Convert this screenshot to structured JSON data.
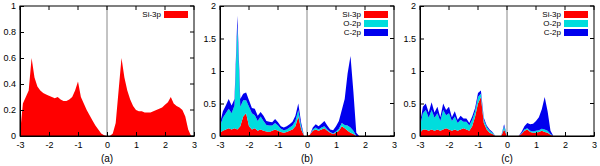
{
  "chart_data": [
    {
      "type": "area",
      "title": "(a)",
      "stacked": true,
      "legend": "upper right",
      "x": [
        -3,
        -2.9,
        -2.8,
        -2.7,
        -2.6,
        -2.5,
        -2.4,
        -2.3,
        -2.2,
        -2.1,
        -2,
        -1.9,
        -1.8,
        -1.7,
        -1.6,
        -1.5,
        -1.4,
        -1.3,
        -1.2,
        -1.1,
        -1,
        -0.9,
        -0.8,
        -0.7,
        -0.6,
        -0.5,
        -0.4,
        -0.3,
        -0.2,
        -0.1,
        0,
        0.1,
        0.2,
        0.3,
        0.4,
        0.5,
        0.6,
        0.7,
        0.8,
        0.9,
        1,
        1.1,
        1.2,
        1.3,
        1.4,
        1.5,
        1.6,
        1.7,
        1.8,
        1.9,
        2,
        2.1,
        2.2,
        2.3,
        2.4,
        2.5,
        2.6,
        2.7,
        2.8,
        2.9,
        3
      ],
      "series": [
        {
          "name": "Si-3p",
          "color": "#ff0000",
          "values": [
            0.02,
            0.25,
            0.3,
            0.35,
            0.6,
            0.45,
            0.38,
            0.35,
            0.33,
            0.32,
            0.31,
            0.3,
            0.29,
            0.3,
            0.28,
            0.27,
            0.27,
            0.28,
            0.3,
            0.35,
            0.42,
            0.3,
            0.25,
            0.2,
            0.16,
            0.12,
            0.08,
            0.05,
            0.02,
            0.005,
            0,
            0,
            0.02,
            0.1,
            0.35,
            0.6,
            0.45,
            0.35,
            0.28,
            0.23,
            0.2,
            0.19,
            0.19,
            0.18,
            0.18,
            0.18,
            0.19,
            0.2,
            0.21,
            0.22,
            0.24,
            0.26,
            0.3,
            0.25,
            0.23,
            0.22,
            0.2,
            0.15,
            0.05,
            0,
            0
          ]
        }
      ],
      "xlim": [
        -3,
        3
      ],
      "xticks": [
        -3,
        -2,
        -1,
        0,
        1,
        2,
        3
      ],
      "ylim": [
        0,
        1
      ],
      "yticks": [
        0,
        0.2,
        0.4,
        0.6,
        0.8,
        1
      ],
      "vlines": [
        0
      ]
    },
    {
      "type": "area",
      "title": "(b)",
      "stacked": true,
      "legend": "upper right",
      "x": [
        -3,
        -2.9,
        -2.8,
        -2.7,
        -2.6,
        -2.5,
        -2.4,
        -2.3,
        -2.2,
        -2.1,
        -2,
        -1.9,
        -1.8,
        -1.7,
        -1.6,
        -1.5,
        -1.4,
        -1.3,
        -1.2,
        -1.1,
        -1,
        -0.9,
        -0.8,
        -0.7,
        -0.6,
        -0.5,
        -0.4,
        -0.3,
        -0.2,
        -0.1,
        0,
        0.1,
        0.2,
        0.3,
        0.4,
        0.5,
        0.6,
        0.7,
        0.8,
        0.9,
        1,
        1.1,
        1.2,
        1.3,
        1.4,
        1.5,
        1.6,
        1.7,
        1.8,
        1.9,
        2,
        2.1,
        2.2,
        2.3,
        2.4,
        2.5,
        2.6,
        2.7,
        2.8,
        2.9,
        3
      ],
      "series": [
        {
          "name": "Si-3p",
          "color": "#ff0000",
          "values": [
            0.05,
            0.08,
            0.1,
            0.12,
            0.1,
            0.12,
            0.1,
            0.15,
            0.3,
            0.35,
            0.15,
            0.1,
            0.12,
            0.08,
            0.1,
            0.08,
            0.07,
            0.06,
            0.08,
            0.1,
            0.08,
            0.06,
            0.05,
            0.06,
            0.08,
            0.1,
            0.15,
            0.3,
            0.1,
            0,
            0,
            0.02,
            0.08,
            0.1,
            0.08,
            0.1,
            0.12,
            0.08,
            0.05,
            0.03,
            0.05,
            0.08,
            0.15,
            0.12,
            0.08,
            0.05,
            0.03,
            0,
            0,
            0,
            0,
            0,
            0,
            0,
            0,
            0,
            0,
            0,
            0,
            0,
            0
          ]
        },
        {
          "name": "O-2p",
          "color": "#00dddd",
          "values": [
            0.1,
            0.2,
            0.25,
            0.3,
            0.25,
            0.35,
            1.6,
            0.3,
            0.25,
            0.2,
            0.3,
            0.25,
            0.2,
            0.15,
            0.2,
            0.15,
            0.1,
            0.1,
            0.08,
            0.1,
            0.08,
            0.05,
            0.04,
            0.04,
            0.05,
            0.06,
            0.08,
            0.1,
            0.05,
            0,
            0,
            0,
            0.02,
            0.03,
            0.02,
            0.03,
            0.03,
            0.02,
            0.01,
            0.01,
            0.02,
            0.03,
            0.05,
            0.05,
            0.08,
            0.08,
            0.05,
            0,
            0,
            0,
            0,
            0,
            0,
            0,
            0,
            0,
            0,
            0,
            0,
            0,
            0
          ]
        },
        {
          "name": "C-2p",
          "color": "#0000ee",
          "values": [
            0.05,
            0.1,
            0.12,
            0.15,
            0.12,
            0.1,
            0.15,
            0.12,
            0.1,
            0.12,
            0.1,
            0.08,
            0.1,
            0.08,
            0.07,
            0.08,
            0.06,
            0.06,
            0.05,
            0.06,
            0.05,
            0.04,
            0.04,
            0.05,
            0.05,
            0.06,
            0.08,
            0.1,
            0.05,
            0,
            0,
            0,
            0.03,
            0.05,
            0.05,
            0.06,
            0.08,
            0.06,
            0.04,
            0.05,
            0.08,
            0.12,
            0.2,
            0.4,
            0.8,
            1.1,
            0.6,
            0.05,
            0,
            0,
            0,
            0,
            0,
            0,
            0,
            0,
            0,
            0,
            0,
            0,
            0
          ]
        }
      ],
      "xlim": [
        -3,
        3
      ],
      "xticks": [
        -3,
        -2,
        -1,
        0,
        1,
        2,
        3
      ],
      "ylim": [
        0,
        2
      ],
      "yticks": [
        0,
        0.5,
        1,
        1.5,
        2
      ],
      "vlines": [
        0
      ]
    },
    {
      "type": "area",
      "title": "(c)",
      "stacked": true,
      "legend": "upper right",
      "x": [
        -3,
        -2.9,
        -2.8,
        -2.7,
        -2.6,
        -2.5,
        -2.4,
        -2.3,
        -2.2,
        -2.1,
        -2,
        -1.9,
        -1.8,
        -1.7,
        -1.6,
        -1.5,
        -1.4,
        -1.3,
        -1.2,
        -1.1,
        -1,
        -0.9,
        -0.8,
        -0.7,
        -0.6,
        -0.5,
        -0.4,
        -0.3,
        -0.2,
        -0.1,
        0,
        0.1,
        0.2,
        0.3,
        0.4,
        0.5,
        0.6,
        0.7,
        0.8,
        0.9,
        1,
        1.1,
        1.2,
        1.3,
        1.4,
        1.5,
        1.6,
        1.7,
        1.8,
        1.9,
        2,
        2.1,
        2.2,
        2.3,
        2.4,
        2.5,
        2.6,
        2.7,
        2.8,
        2.9,
        3
      ],
      "series": [
        {
          "name": "Si-3p",
          "color": "#ff0000",
          "values": [
            0.05,
            0.1,
            0.1,
            0.08,
            0.1,
            0.08,
            0.1,
            0.08,
            0.1,
            0.12,
            0.1,
            0.08,
            0.1,
            0.08,
            0.1,
            0.12,
            0.1,
            0.08,
            0.15,
            0.3,
            0.5,
            0.6,
            0.2,
            0.1,
            0.05,
            0.03,
            0,
            0,
            0,
            0.1,
            0,
            0,
            0,
            0,
            0,
            0.03,
            0.08,
            0.1,
            0.06,
            0.05,
            0.05,
            0.06,
            0.08,
            0.06,
            0.05,
            0.02,
            0,
            0,
            0,
            0,
            0,
            0,
            0,
            0,
            0,
            0,
            0,
            0,
            0,
            0,
            0
          ]
        },
        {
          "name": "O-2p",
          "color": "#00dddd",
          "values": [
            0.1,
            0.25,
            0.3,
            0.2,
            0.3,
            0.2,
            0.25,
            0.15,
            0.3,
            0.2,
            0.25,
            0.15,
            0.2,
            0.12,
            0.15,
            0.1,
            0.12,
            0.08,
            0.1,
            0.08,
            0.1,
            0.05,
            0.05,
            0.04,
            0.03,
            0.02,
            0,
            0,
            0,
            0.05,
            0,
            0,
            0,
            0,
            0,
            0.01,
            0.02,
            0.02,
            0.02,
            0.02,
            0.03,
            0.03,
            0.03,
            0.04,
            0.03,
            0.01,
            0,
            0,
            0,
            0,
            0,
            0,
            0,
            0,
            0,
            0,
            0,
            0,
            0,
            0,
            0
          ]
        },
        {
          "name": "C-2p",
          "color": "#0000ee",
          "values": [
            0.05,
            0.1,
            0.1,
            0.08,
            0.12,
            0.08,
            0.1,
            0.06,
            0.1,
            0.08,
            0.1,
            0.06,
            0.08,
            0.05,
            0.06,
            0.05,
            0.05,
            0.04,
            0.05,
            0.05,
            0.06,
            0.05,
            0.03,
            0.02,
            0.02,
            0.01,
            0,
            0,
            0,
            0.03,
            0,
            0,
            0,
            0,
            0,
            0.02,
            0.05,
            0.08,
            0.1,
            0.12,
            0.15,
            0.2,
            0.3,
            0.5,
            0.3,
            0.05,
            0,
            0,
            0,
            0,
            0,
            0,
            0,
            0,
            0,
            0,
            0,
            0,
            0,
            0,
            0
          ]
        }
      ],
      "xlim": [
        -3,
        3
      ],
      "xticks": [
        -3,
        -2,
        -1,
        0,
        1,
        2,
        3
      ],
      "ylim": [
        0,
        2
      ],
      "yticks": [
        0,
        0.5,
        1,
        1.5,
        2
      ],
      "vlines": [
        0
      ]
    }
  ]
}
